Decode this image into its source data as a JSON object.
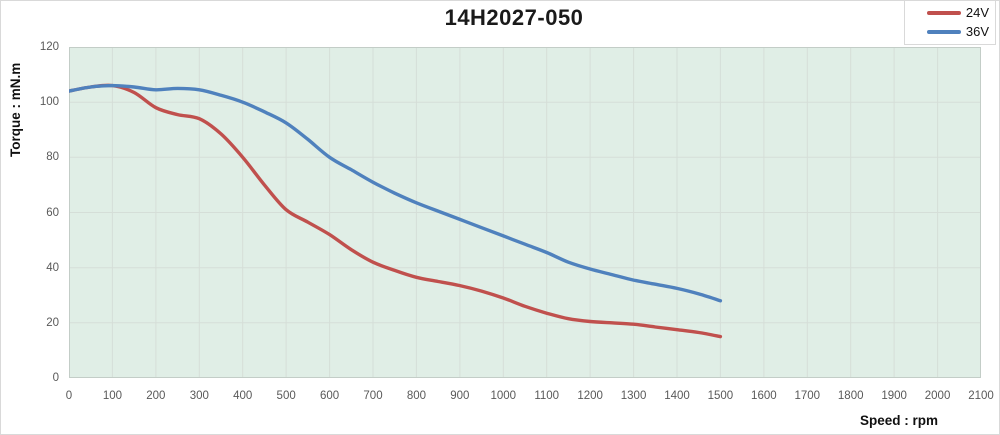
{
  "title": "14H2027-050",
  "legend": [
    {
      "label": "24V",
      "color": "#c0504d"
    },
    {
      "label": "36V",
      "color": "#4f81bd"
    }
  ],
  "chart_data": {
    "type": "line",
    "title": "14H2027-050",
    "xlabel": "Speed : rpm",
    "ylabel": "Torque : mN.m",
    "xlim": [
      0,
      2100
    ],
    "ylim": [
      0,
      120
    ],
    "grid": true,
    "legend_position": "top-right",
    "plot_bg": "#e0eee6",
    "grid_color": "#d5ded8",
    "plot_border_color": "#c3cdc7",
    "x_ticks": [
      0,
      100,
      200,
      300,
      400,
      500,
      600,
      700,
      800,
      900,
      1000,
      1100,
      1200,
      1300,
      1400,
      1500,
      1600,
      1700,
      1800,
      1900,
      2000,
      2100
    ],
    "y_ticks": [
      0,
      20,
      40,
      60,
      80,
      100,
      120
    ],
    "x": [
      0,
      50,
      100,
      150,
      200,
      250,
      300,
      350,
      400,
      450,
      500,
      550,
      600,
      650,
      700,
      750,
      800,
      850,
      900,
      950,
      1000,
      1050,
      1100,
      1150,
      1200,
      1250,
      1300,
      1350,
      1400,
      1450,
      1500
    ],
    "series": [
      {
        "name": "24V",
        "color": "#c0504d",
        "values": [
          104,
          105.5,
          106,
          103.5,
          98,
          95.5,
          94,
          88.5,
          80,
          70,
          61,
          56.5,
          52,
          46.5,
          42,
          39,
          36.5,
          35,
          33.5,
          31.5,
          29,
          26,
          23.5,
          21.5,
          20.5,
          20,
          19.5,
          18.5,
          17.5,
          16.5,
          15
        ]
      },
      {
        "name": "36V",
        "color": "#4f81bd",
        "values": [
          104,
          105.5,
          106,
          105.5,
          104.5,
          105,
          104.5,
          102.5,
          100,
          96.5,
          92.5,
          86.5,
          80,
          75.5,
          71,
          67,
          63.5,
          60.5,
          57.5,
          54.5,
          51.5,
          48.5,
          45.5,
          42,
          39.5,
          37.5,
          35.5,
          34,
          32.5,
          30.5,
          28
        ]
      }
    ]
  }
}
